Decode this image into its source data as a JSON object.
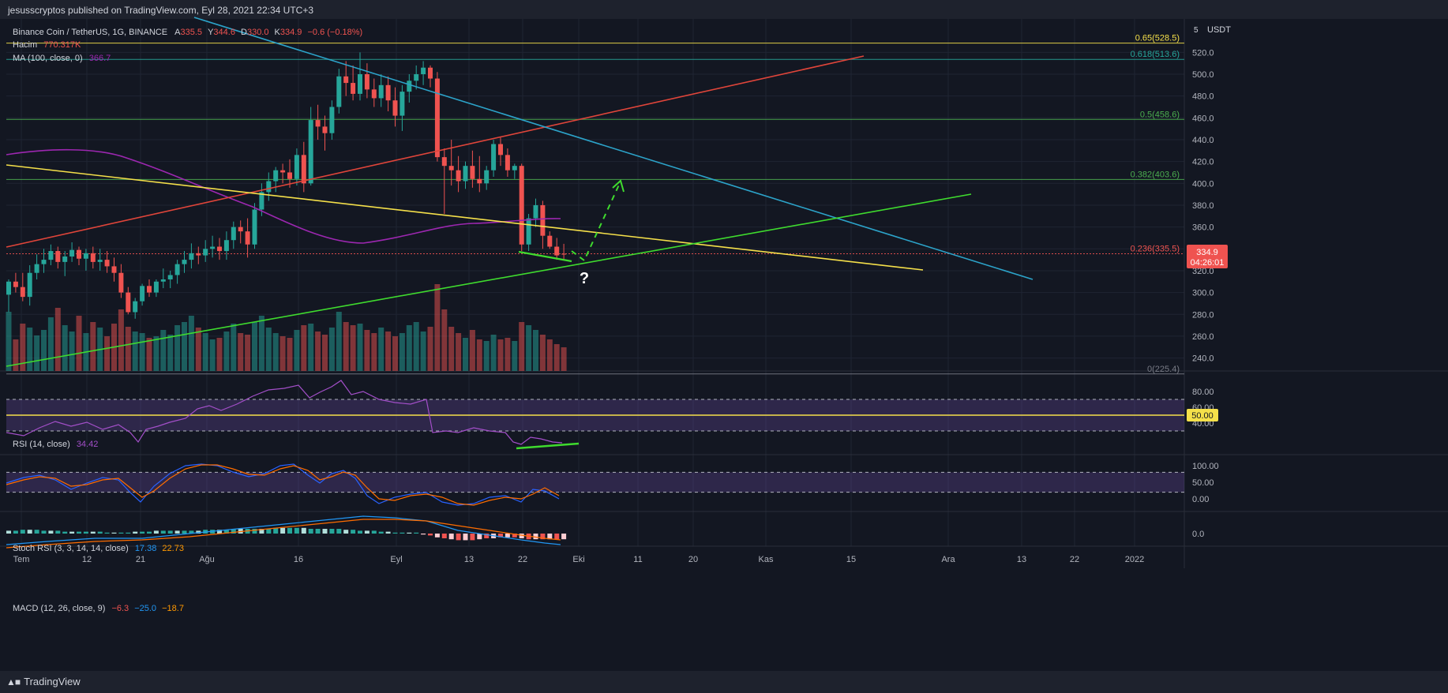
{
  "publisher_line": "jesusscryptos published on TradingView.com, Eyl 28, 2021 22:34 UTC+3",
  "footer_brand": "TradingView",
  "colors": {
    "background": "#131722",
    "candle_up": "#26a69a",
    "candle_down": "#ef5350",
    "ma": "#9c27b0",
    "fib_line": "#f5c518",
    "red_trend": "#e0453a",
    "blue_trend": "#2ca3c9",
    "green_trend": "#3fdb2e",
    "yellow_trend": "#f5e04a",
    "rsi": "#a34fc9",
    "stoch_k": "#2962ff",
    "stoch_d": "#ff6d00",
    "macd": "#2196f3",
    "signal": "#ff6d00"
  },
  "legend": {
    "symbol": "Binance Coin / TetherUS, 1G, BINANCE",
    "o_label": "A",
    "o_val": "335.5",
    "h_label": "Y",
    "h_val": "344.6",
    "l_label": "D",
    "l_val": "330.0",
    "c_label": "K",
    "c_val": "334.9",
    "change": "−0.6 (−0.18%)",
    "volume_label": "Hacim",
    "volume_val": "770.317K",
    "ma_label": "MA (100, close, 0)",
    "ma_val": "366.7"
  },
  "price_axis": {
    "currency": "USDT",
    "badge_value": "334.9",
    "badge_time": "04:26:01",
    "ticks": [
      "520.0",
      "500.0",
      "480.0",
      "460.0",
      "440.0",
      "420.0",
      "400.0",
      "380.0",
      "360.0",
      "340.0",
      "320.0",
      "300.0",
      "280.0",
      "260.0",
      "240.0"
    ]
  },
  "fib_labels": [
    "0.65(528.5)",
    "0.618(513.6)",
    "0.5(458.6)",
    "0.382(403.6)",
    "0.236(335.5)",
    "0(225.4)"
  ],
  "time_axis": [
    "Tem",
    "12",
    "21",
    "Ağu",
    "16",
    "Eyl",
    "13",
    "22",
    "Eki",
    "11",
    "20",
    "Kas",
    "15",
    "Ara",
    "13",
    "22",
    "2022"
  ],
  "annotation": "?",
  "rsi": {
    "label": "RSI (14, close)",
    "value": "34.42",
    "ticks": [
      "80.00",
      "60.00",
      "40.00"
    ],
    "level_badge": "50.00"
  },
  "stoch": {
    "label": "Stoch RSI (3, 3, 14, 14, close)",
    "k": "17.38",
    "d": "22.73",
    "ticks": [
      "100.00",
      "50.00",
      "0.00"
    ]
  },
  "macd": {
    "label": "MACD (12, 26, close, 9)",
    "hist": "−6.3",
    "macd": "−25.0",
    "signal": "−18.7",
    "ticks": [
      "0.0"
    ]
  },
  "chart_data": {
    "type": "candlestick",
    "title": "Binance Coin / TetherUS, 1G, BINANCE",
    "ylim": [
      225,
      540
    ],
    "fib_levels": [
      {
        "ratio": "0.65",
        "price": 528.5
      },
      {
        "ratio": "0.618",
        "price": 513.6
      },
      {
        "ratio": "0.5",
        "price": 458.6
      },
      {
        "ratio": "0.382",
        "price": 403.6
      },
      {
        "ratio": "0.236",
        "price": 335.5
      },
      {
        "ratio": "0",
        "price": 225.4
      }
    ],
    "candles": [
      [
        298,
        312,
        282,
        310
      ],
      [
        310,
        318,
        300,
        305
      ],
      [
        305,
        318,
        292,
        296
      ],
      [
        296,
        325,
        288,
        318
      ],
      [
        318,
        335,
        312,
        326
      ],
      [
        326,
        340,
        318,
        330
      ],
      [
        330,
        344,
        325,
        338
      ],
      [
        338,
        342,
        322,
        328
      ],
      [
        328,
        338,
        315,
        333
      ],
      [
        333,
        346,
        328,
        339
      ],
      [
        339,
        342,
        325,
        331
      ],
      [
        331,
        340,
        320,
        336
      ],
      [
        336,
        342,
        322,
        328
      ],
      [
        328,
        340,
        320,
        330
      ],
      [
        330,
        338,
        318,
        324
      ],
      [
        324,
        332,
        310,
        318
      ],
      [
        318,
        326,
        295,
        300
      ],
      [
        300,
        305,
        280,
        282
      ],
      [
        282,
        295,
        276,
        292
      ],
      [
        292,
        308,
        288,
        306
      ],
      [
        306,
        312,
        296,
        300
      ],
      [
        300,
        312,
        296,
        310
      ],
      [
        310,
        322,
        304,
        312
      ],
      [
        312,
        320,
        304,
        316
      ],
      [
        316,
        330,
        308,
        326
      ],
      [
        326,
        338,
        318,
        330
      ],
      [
        330,
        345,
        322,
        336
      ],
      [
        336,
        342,
        326,
        334
      ],
      [
        334,
        348,
        328,
        340
      ],
      [
        340,
        352,
        332,
        342
      ],
      [
        342,
        350,
        330,
        338
      ],
      [
        338,
        356,
        330,
        348
      ],
      [
        348,
        365,
        340,
        360
      ],
      [
        360,
        366,
        345,
        356
      ],
      [
        356,
        368,
        332,
        344
      ],
      [
        344,
        382,
        340,
        376
      ],
      [
        376,
        400,
        370,
        392
      ],
      [
        392,
        410,
        384,
        402
      ],
      [
        402,
        415,
        392,
        412
      ],
      [
        412,
        418,
        400,
        410
      ],
      [
        410,
        422,
        396,
        404
      ],
      [
        404,
        432,
        398,
        426
      ],
      [
        426,
        438,
        392,
        400
      ],
      [
        400,
        470,
        398,
        458
      ],
      [
        458,
        472,
        440,
        452
      ],
      [
        452,
        462,
        430,
        446
      ],
      [
        446,
        476,
        440,
        470
      ],
      [
        470,
        505,
        464,
        498
      ],
      [
        498,
        512,
        480,
        492
      ],
      [
        492,
        508,
        476,
        482
      ],
      [
        482,
        520,
        476,
        500
      ],
      [
        500,
        510,
        478,
        486
      ],
      [
        486,
        496,
        470,
        478
      ],
      [
        478,
        500,
        470,
        490
      ],
      [
        490,
        498,
        466,
        476
      ],
      [
        476,
        488,
        452,
        462
      ],
      [
        462,
        490,
        448,
        484
      ],
      [
        484,
        500,
        474,
        494
      ],
      [
        494,
        508,
        486,
        500
      ],
      [
        500,
        512,
        490,
        506
      ],
      [
        506,
        508,
        488,
        496
      ],
      [
        496,
        502,
        420,
        424
      ],
      [
        424,
        432,
        372,
        416
      ],
      [
        416,
        440,
        398,
        412
      ],
      [
        412,
        425,
        392,
        402
      ],
      [
        402,
        420,
        395,
        416
      ],
      [
        416,
        430,
        396,
        404
      ],
      [
        404,
        425,
        392,
        400
      ],
      [
        400,
        416,
        394,
        412
      ],
      [
        412,
        440,
        406,
        436
      ],
      [
        436,
        442,
        416,
        426
      ],
      [
        426,
        432,
        406,
        412
      ],
      [
        412,
        418,
        404,
        416
      ],
      [
        416,
        418,
        338,
        344
      ],
      [
        344,
        372,
        338,
        368
      ],
      [
        368,
        386,
        360,
        380
      ],
      [
        380,
        384,
        340,
        352
      ],
      [
        352,
        356,
        340,
        342
      ],
      [
        342,
        350,
        330,
        334
      ],
      [
        335.5,
        344.6,
        330.0,
        334.9
      ]
    ],
    "ma100_path_desc": "purple moving average",
    "trendlines": {
      "red": "rising resistance",
      "blue": "falling resistance",
      "yellow": "falling support",
      "green": "rising support"
    }
  }
}
